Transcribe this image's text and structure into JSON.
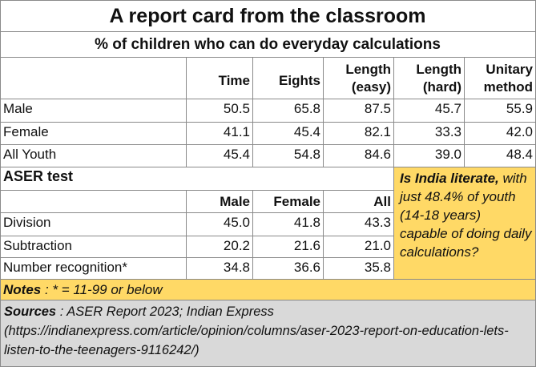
{
  "chart_data": {
    "type": "table",
    "title": "A report card from the classroom",
    "subtitle": "% of children who can do everyday calculations",
    "table1": {
      "columns": [
        "Time",
        "Eights",
        "Length (easy)",
        "Length (hard)",
        "Unitary method"
      ],
      "header_lines": [
        [
          "Time"
        ],
        [
          "Eights"
        ],
        [
          "Length",
          "(easy)"
        ],
        [
          "Length",
          "(hard)"
        ],
        [
          "Unitary",
          "method"
        ]
      ],
      "rows": [
        {
          "label": "Male",
          "values": [
            "50.5",
            "65.8",
            "87.5",
            "45.7",
            "55.9"
          ]
        },
        {
          "label": "Female",
          "values": [
            "41.1",
            "45.4",
            "82.1",
            "33.3",
            "42.0"
          ]
        },
        {
          "label": "All Youth",
          "values": [
            "45.4",
            "54.8",
            "84.6",
            "39.0",
            "48.4"
          ]
        }
      ]
    },
    "table2": {
      "title": "ASER test",
      "columns": [
        "Male",
        "Female",
        "All"
      ],
      "rows": [
        {
          "label": "Division",
          "values": [
            "45.0",
            "41.8",
            "43.3"
          ]
        },
        {
          "label": "Subtraction",
          "values": [
            "20.2",
            "21.6",
            "21.0"
          ]
        },
        {
          "label": "Number recognition*",
          "values": [
            "34.8",
            "36.6",
            "35.8"
          ]
        }
      ]
    },
    "callout": {
      "lead": "Is India literate,",
      "text": "with  just 48.4% of youth (14-18 years) capable of doing daily calculations?"
    },
    "notes": {
      "label": "Notes",
      "text": " : * = 11-99 or below"
    },
    "sources": {
      "label": "Sources",
      "text": " : ASER Report 2023; Indian Express (https://indianexpress.com/article/opinion/columns/aser-2023-report-on-education-lets-listen-to-the-teenagers-9116242/)"
    }
  }
}
